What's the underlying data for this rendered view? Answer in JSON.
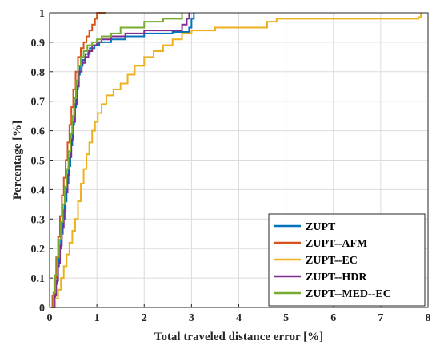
{
  "chart_data": {
    "type": "line",
    "title": "",
    "xlabel": "Total traveled distance error [%]",
    "ylabel": "Percentage [%]",
    "xlim": [
      0,
      8
    ],
    "ylim": [
      0,
      1
    ],
    "xticks": [
      "0",
      "1",
      "2",
      "3",
      "4",
      "5",
      "6",
      "7",
      "8"
    ],
    "yticks": [
      "0",
      "0.1",
      "0.2",
      "0.3",
      "0.4",
      "0.5",
      "0.6",
      "0.7",
      "0.8",
      "0.9",
      "1"
    ],
    "grid": true,
    "legend_position": "bottom-right",
    "series": [
      {
        "name": "ZUPT",
        "color": "#0072BD",
        "points": [
          [
            0.05,
            0
          ],
          [
            0.08,
            0.03
          ],
          [
            0.12,
            0.08
          ],
          [
            0.16,
            0.14
          ],
          [
            0.2,
            0.2
          ],
          [
            0.24,
            0.25
          ],
          [
            0.28,
            0.3
          ],
          [
            0.32,
            0.36
          ],
          [
            0.36,
            0.42
          ],
          [
            0.4,
            0.48
          ],
          [
            0.44,
            0.55
          ],
          [
            0.48,
            0.62
          ],
          [
            0.52,
            0.68
          ],
          [
            0.56,
            0.74
          ],
          [
            0.6,
            0.79
          ],
          [
            0.64,
            0.82
          ],
          [
            0.7,
            0.84
          ],
          [
            0.76,
            0.86
          ],
          [
            0.85,
            0.88
          ],
          [
            0.95,
            0.89
          ],
          [
            1.05,
            0.9
          ],
          [
            1.3,
            0.91
          ],
          [
            1.6,
            0.92
          ],
          [
            2.0,
            0.93
          ],
          [
            2.6,
            0.935
          ],
          [
            2.95,
            0.95
          ],
          [
            3.0,
            0.98
          ],
          [
            3.05,
            1.0
          ]
        ]
      },
      {
        "name": "ZUPT--AFM",
        "color": "#D95319",
        "points": [
          [
            0.03,
            0
          ],
          [
            0.06,
            0.04
          ],
          [
            0.1,
            0.1
          ],
          [
            0.14,
            0.17
          ],
          [
            0.18,
            0.24
          ],
          [
            0.22,
            0.31
          ],
          [
            0.26,
            0.38
          ],
          [
            0.3,
            0.44
          ],
          [
            0.34,
            0.5
          ],
          [
            0.38,
            0.56
          ],
          [
            0.42,
            0.62
          ],
          [
            0.46,
            0.68
          ],
          [
            0.5,
            0.74
          ],
          [
            0.55,
            0.8
          ],
          [
            0.6,
            0.85
          ],
          [
            0.66,
            0.88
          ],
          [
            0.72,
            0.9
          ],
          [
            0.78,
            0.92
          ],
          [
            0.84,
            0.94
          ],
          [
            0.9,
            0.96
          ],
          [
            0.96,
            0.98
          ],
          [
            1.0,
            1.0
          ],
          [
            1.2,
            1.0
          ]
        ]
      },
      {
        "name": "ZUPT--EC",
        "color": "#EDB120",
        "points": [
          [
            0.08,
            0
          ],
          [
            0.12,
            0.03
          ],
          [
            0.18,
            0.06
          ],
          [
            0.24,
            0.1
          ],
          [
            0.3,
            0.14
          ],
          [
            0.36,
            0.18
          ],
          [
            0.42,
            0.22
          ],
          [
            0.48,
            0.26
          ],
          [
            0.54,
            0.3
          ],
          [
            0.6,
            0.36
          ],
          [
            0.66,
            0.42
          ],
          [
            0.72,
            0.47
          ],
          [
            0.78,
            0.52
          ],
          [
            0.84,
            0.56
          ],
          [
            0.9,
            0.6
          ],
          [
            0.96,
            0.63
          ],
          [
            1.02,
            0.66
          ],
          [
            1.1,
            0.69
          ],
          [
            1.2,
            0.72
          ],
          [
            1.35,
            0.74
          ],
          [
            1.5,
            0.76
          ],
          [
            1.65,
            0.79
          ],
          [
            1.8,
            0.82
          ],
          [
            2.0,
            0.85
          ],
          [
            2.2,
            0.87
          ],
          [
            2.4,
            0.89
          ],
          [
            2.6,
            0.91
          ],
          [
            2.8,
            0.93
          ],
          [
            3.0,
            0.94
          ],
          [
            3.5,
            0.95
          ],
          [
            4.6,
            0.97
          ],
          [
            4.8,
            0.98
          ],
          [
            7.8,
            0.985
          ],
          [
            7.85,
            1.0
          ]
        ]
      },
      {
        "name": "ZUPT--HDR",
        "color": "#7E2F8E",
        "points": [
          [
            0.06,
            0
          ],
          [
            0.1,
            0.04
          ],
          [
            0.14,
            0.09
          ],
          [
            0.18,
            0.15
          ],
          [
            0.22,
            0.21
          ],
          [
            0.26,
            0.27
          ],
          [
            0.3,
            0.33
          ],
          [
            0.34,
            0.39
          ],
          [
            0.38,
            0.45
          ],
          [
            0.42,
            0.51
          ],
          [
            0.46,
            0.57
          ],
          [
            0.5,
            0.63
          ],
          [
            0.54,
            0.69
          ],
          [
            0.58,
            0.75
          ],
          [
            0.62,
            0.8
          ],
          [
            0.68,
            0.83
          ],
          [
            0.75,
            0.85
          ],
          [
            0.82,
            0.87
          ],
          [
            0.9,
            0.89
          ],
          [
            1.0,
            0.9
          ],
          [
            1.1,
            0.91
          ],
          [
            1.3,
            0.92
          ],
          [
            1.6,
            0.93
          ],
          [
            2.0,
            0.94
          ],
          [
            2.8,
            0.96
          ],
          [
            2.9,
            0.98
          ],
          [
            2.95,
            1.0
          ]
        ]
      },
      {
        "name": "ZUPT--MED--EC",
        "color": "#77AC30",
        "points": [
          [
            0.04,
            0
          ],
          [
            0.08,
            0.05
          ],
          [
            0.12,
            0.11
          ],
          [
            0.16,
            0.17
          ],
          [
            0.2,
            0.23
          ],
          [
            0.24,
            0.29
          ],
          [
            0.28,
            0.35
          ],
          [
            0.32,
            0.41
          ],
          [
            0.36,
            0.47
          ],
          [
            0.4,
            0.53
          ],
          [
            0.44,
            0.59
          ],
          [
            0.48,
            0.65
          ],
          [
            0.52,
            0.71
          ],
          [
            0.56,
            0.77
          ],
          [
            0.6,
            0.82
          ],
          [
            0.66,
            0.85
          ],
          [
            0.72,
            0.87
          ],
          [
            0.8,
            0.89
          ],
          [
            0.9,
            0.9
          ],
          [
            1.0,
            0.91
          ],
          [
            1.1,
            0.92
          ],
          [
            1.3,
            0.93
          ],
          [
            1.5,
            0.95
          ],
          [
            2.0,
            0.97
          ],
          [
            2.4,
            0.98
          ],
          [
            2.8,
            1.0
          ]
        ]
      }
    ]
  }
}
